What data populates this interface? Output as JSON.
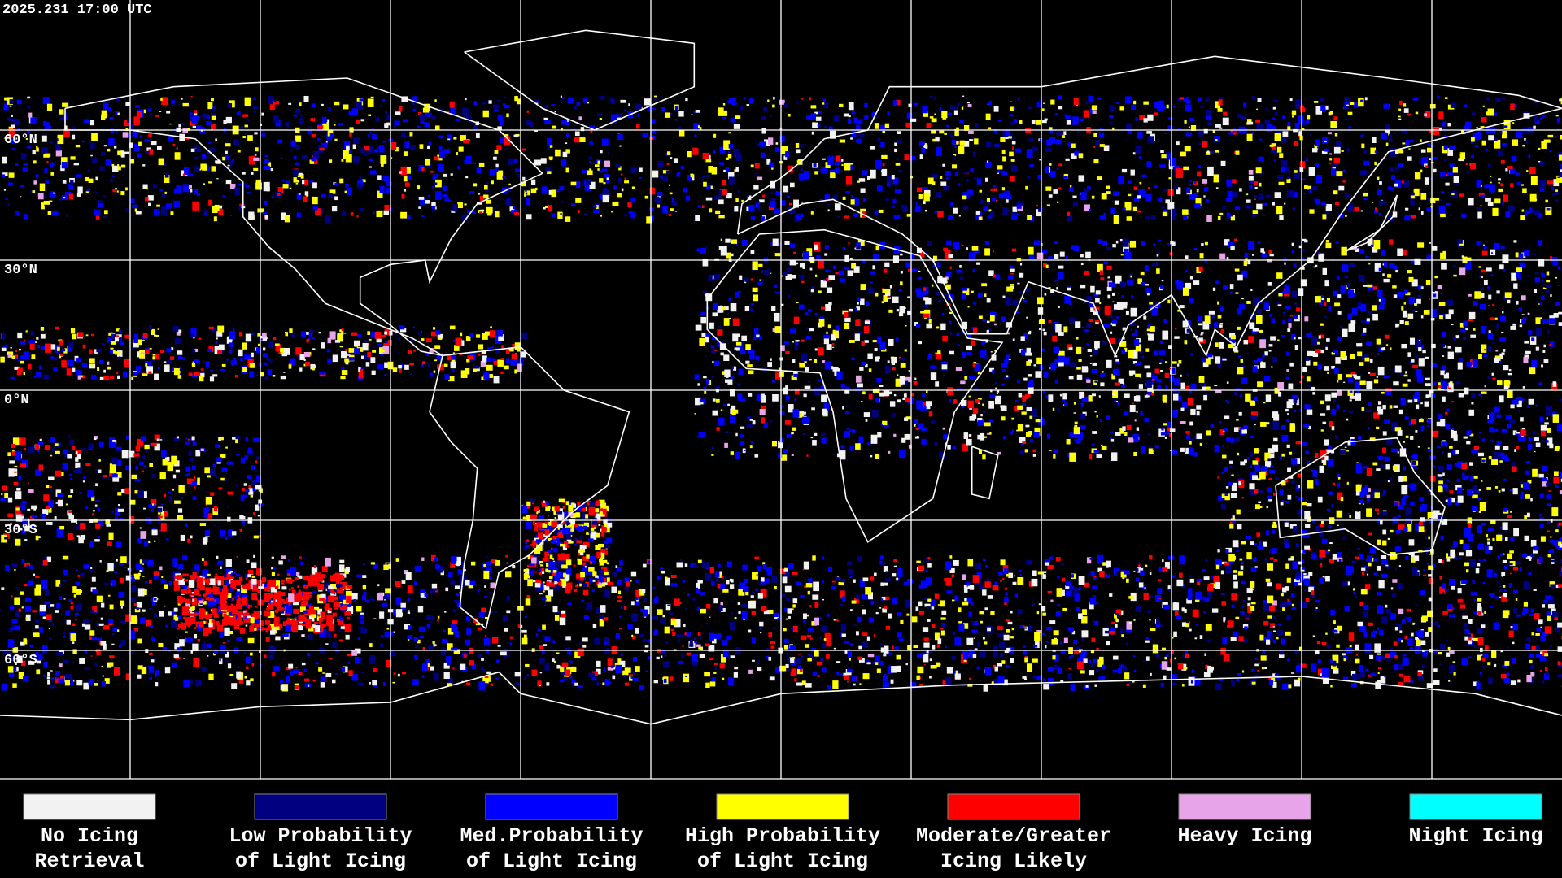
{
  "header": {
    "timestamp": "2025.231 17:00 UTC"
  },
  "latitude_labels": [
    "60°N",
    "30°N",
    "0°N",
    "30°S",
    "60°S"
  ],
  "legend": [
    {
      "color": "#f2f2f2",
      "lines": [
        "No Icing",
        "Retrieval"
      ]
    },
    {
      "color": "#000080",
      "lines": [
        "Low Probability",
        "of Light Icing"
      ]
    },
    {
      "color": "#0000ff",
      "lines": [
        "Med.Probability",
        "of Light Icing"
      ]
    },
    {
      "color": "#ffff00",
      "lines": [
        "High Probability",
        "of Light Icing"
      ]
    },
    {
      "color": "#ff0000",
      "lines": [
        "Moderate/Greater",
        "Icing Likely"
      ]
    },
    {
      "color": "#e8a4e8",
      "lines": [
        "Heavy Icing"
      ]
    },
    {
      "color": "#00ffff",
      "lines": [
        "Night Icing"
      ]
    }
  ]
}
